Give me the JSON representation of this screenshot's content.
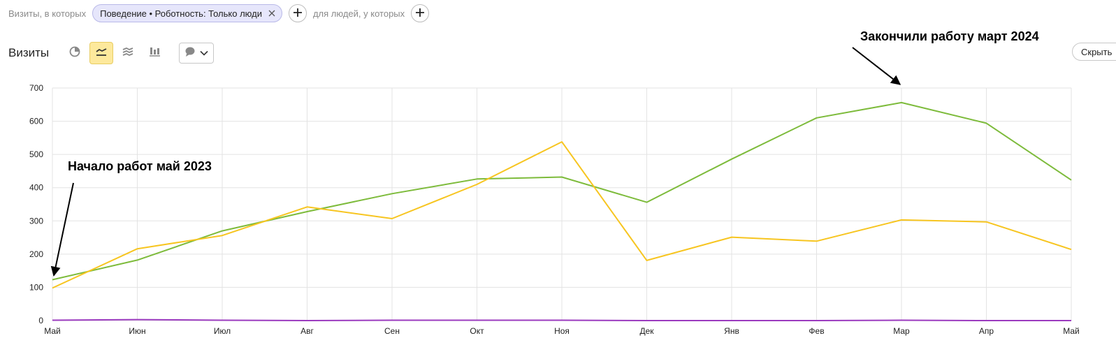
{
  "filters": {
    "segment_label": "Визиты, в которых",
    "chip_label": "Поведение • Роботность: Только люди",
    "people_label": "для людей, у которых"
  },
  "header": {
    "title": "Визиты",
    "hide_label": "Скрыть"
  },
  "icons": {
    "chip_close": "close-icon",
    "add": "plus-icon",
    "pie": "pie-chart-icon",
    "line": "line-chart-icon",
    "area": "area-chart-icon",
    "bar": "bar-chart-icon",
    "annotation": "speech-bubble-icon",
    "dropdown": "chevron-down-icon"
  },
  "colors": {
    "green": "#7dbb3b",
    "yellow": "#f7c520",
    "purple": "#9b3bbf",
    "active_button": "#fde99c",
    "chip_bg": "#e6e6fb"
  },
  "chart_data": {
    "type": "line",
    "x": [
      "Май",
      "Июн",
      "Июл",
      "Авг",
      "Сен",
      "Окт",
      "Ноя",
      "Дек",
      "Янв",
      "Фев",
      "Мар",
      "Апр",
      "Май"
    ],
    "ylim": [
      0,
      700
    ],
    "yticks": [
      0,
      100,
      200,
      300,
      400,
      500,
      600,
      700
    ],
    "grid": true,
    "series": [
      {
        "color": "#7dbb3b",
        "values": [
          123,
          182,
          270,
          328,
          382,
          426,
          432,
          356,
          486,
          610,
          656,
          594,
          423
        ]
      },
      {
        "color": "#f7c520",
        "values": [
          98,
          216,
          256,
          342,
          307,
          410,
          538,
          181,
          251,
          239,
          303,
          297,
          214
        ]
      },
      {
        "color": "#9b3bbf",
        "values": [
          1,
          3,
          1,
          0,
          1,
          1,
          1,
          0,
          0,
          0,
          1,
          0,
          0
        ]
      }
    ],
    "annotations": [
      {
        "text": "Начало работ май 2023",
        "at_index": 0
      },
      {
        "text": "Закончили работу март 2024",
        "at_index": 10
      }
    ]
  }
}
